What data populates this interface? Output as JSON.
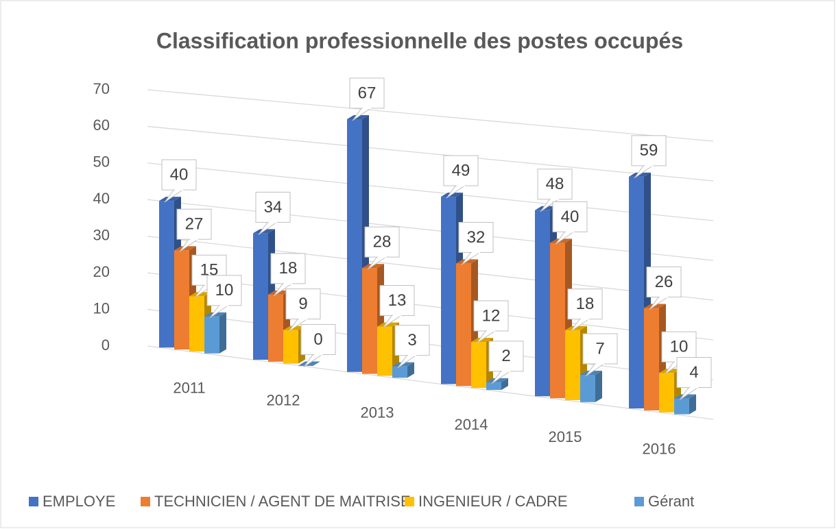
{
  "chart_data": {
    "type": "bar3d",
    "title": "Classification professionnelle des postes occupés",
    "categories": [
      "2011",
      "2012",
      "2013",
      "2014",
      "2015",
      "2016"
    ],
    "series": [
      {
        "name": "EMPLOYE",
        "color": "#4472c4",
        "values": [
          40,
          34,
          67,
          49,
          48,
          59
        ]
      },
      {
        "name": "TECHNICIEN / AGENT DE MAITRISE",
        "color": "#ed7d31",
        "values": [
          27,
          18,
          28,
          32,
          40,
          26
        ]
      },
      {
        "name": "INGENIEUR / CADRE",
        "color": "#ffc000",
        "values": [
          15,
          9,
          13,
          12,
          18,
          10
        ]
      },
      {
        "name": "Gérant",
        "color": "#5b9bd5",
        "values": [
          10,
          0,
          3,
          2,
          7,
          4
        ]
      }
    ],
    "ylim": [
      0,
      70
    ],
    "yticks": [
      0,
      10,
      20,
      30,
      40,
      50,
      60,
      70
    ],
    "grid": true,
    "legend": "bottom"
  }
}
